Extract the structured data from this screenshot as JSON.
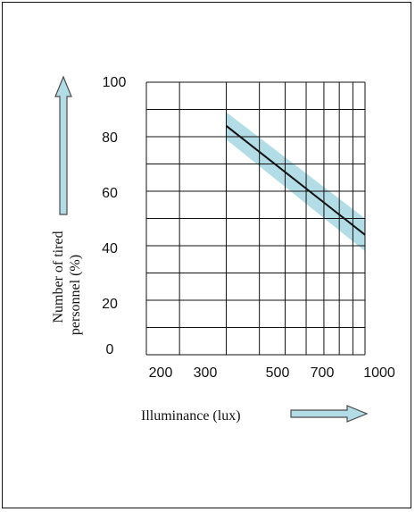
{
  "chart_data": {
    "type": "line",
    "title": "",
    "xlabel": "Illuminance (lux)",
    "ylabel_lines": [
      "Number of tired",
      "personnel (%)"
    ],
    "x_scale": "log",
    "xlim": [
      150,
      1000
    ],
    "ylim": [
      0,
      100
    ],
    "x_tick_labels": [
      "200",
      "300",
      "500",
      "700",
      "1000"
    ],
    "x_tick_values": [
      200,
      300,
      500,
      700,
      1000
    ],
    "y_tick_labels": [
      "0",
      "20",
      "40",
      "60",
      "80",
      "100"
    ],
    "y_tick_values": [
      0,
      20,
      40,
      60,
      80,
      100
    ],
    "x_grid_values": [
      150,
      200,
      300,
      400,
      500,
      600,
      700,
      800,
      900,
      1000
    ],
    "y_grid_values": [
      0,
      10,
      20,
      30,
      40,
      50,
      60,
      70,
      80,
      90,
      100
    ],
    "series": [
      {
        "x": [
          300,
          1000
        ],
        "y": [
          84,
          44
        ]
      }
    ],
    "band": {
      "x": [
        300,
        1000
      ],
      "upper": [
        89,
        50
      ],
      "lower": [
        79,
        38
      ]
    },
    "grid": true,
    "colors": {
      "line": "#111111",
      "band": "#b3dde6",
      "arrow_fill": "#b3dde6",
      "arrow_stroke": "#4a4a4a",
      "grid": "#111111"
    }
  }
}
